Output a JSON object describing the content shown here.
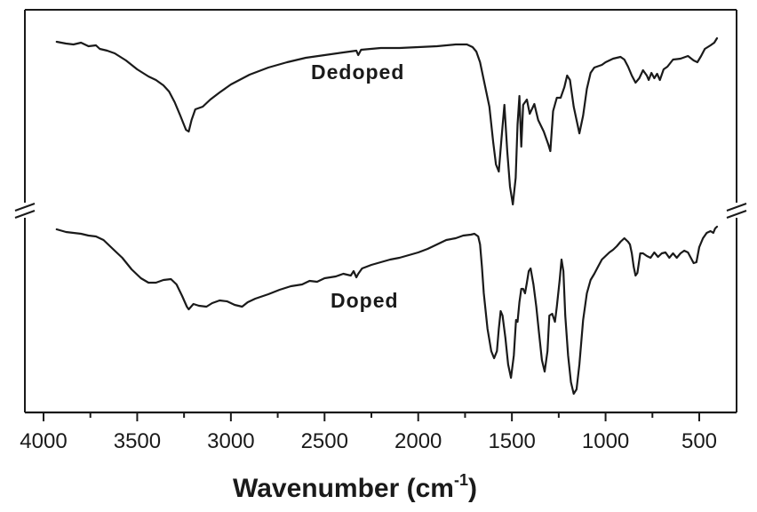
{
  "chart_data": {
    "type": "line",
    "title": "",
    "xlabel": "Wavenumber (cm",
    "xlabel_superscript": "-1",
    "xlabel_close": ")",
    "ylabel": "",
    "xlim": [
      4100,
      300
    ],
    "x_reversed": true,
    "x_ticks": [
      4000,
      3500,
      3000,
      2500,
      2000,
      1500,
      1000,
      500
    ],
    "x_tick_labels": [
      "4000",
      "3500",
      "3000",
      "2500",
      "2000",
      "1500",
      "1000",
      "500"
    ],
    "y_axis_break": true,
    "grid": false,
    "legend": "none",
    "annotations": [
      {
        "text": "Dedoped",
        "series": "Dedoped"
      },
      {
        "text": "Doped",
        "series": "Doped"
      }
    ],
    "y_units": "arbitrary (stacked transmittance, pixel offsets)",
    "series": [
      {
        "name": "Dedoped",
        "color": "#1a1a1a",
        "points": [
          [
            3930,
            47
          ],
          [
            3880,
            49
          ],
          [
            3840,
            50
          ],
          [
            3800,
            48
          ],
          [
            3760,
            52
          ],
          [
            3720,
            51
          ],
          [
            3700,
            55
          ],
          [
            3660,
            57
          ],
          [
            3620,
            60
          ],
          [
            3560,
            68
          ],
          [
            3500,
            78
          ],
          [
            3440,
            86
          ],
          [
            3400,
            90
          ],
          [
            3360,
            96
          ],
          [
            3330,
            103
          ],
          [
            3300,
            115
          ],
          [
            3270,
            130
          ],
          [
            3240,
            146
          ],
          [
            3225,
            148
          ],
          [
            3210,
            135
          ],
          [
            3190,
            123
          ],
          [
            3150,
            120
          ],
          [
            3110,
            112
          ],
          [
            3060,
            104
          ],
          [
            3000,
            95
          ],
          [
            2900,
            84
          ],
          [
            2800,
            76
          ],
          [
            2700,
            70
          ],
          [
            2600,
            65
          ],
          [
            2500,
            62
          ],
          [
            2400,
            59
          ],
          [
            2330,
            57
          ],
          [
            2320,
            62
          ],
          [
            2305,
            56
          ],
          [
            2200,
            54
          ],
          [
            2100,
            54
          ],
          [
            2000,
            53
          ],
          [
            1900,
            52
          ],
          [
            1800,
            50
          ],
          [
            1740,
            50
          ],
          [
            1710,
            53
          ],
          [
            1690,
            58
          ],
          [
            1670,
            70
          ],
          [
            1650,
            90
          ],
          [
            1620,
            120
          ],
          [
            1600,
            160
          ],
          [
            1585,
            185
          ],
          [
            1570,
            193
          ],
          [
            1555,
            155
          ],
          [
            1540,
            118
          ],
          [
            1525,
            170
          ],
          [
            1510,
            210
          ],
          [
            1495,
            230
          ],
          [
            1480,
            200
          ],
          [
            1470,
            140
          ],
          [
            1460,
            108
          ],
          [
            1450,
            165
          ],
          [
            1440,
            118
          ],
          [
            1420,
            112
          ],
          [
            1405,
            128
          ],
          [
            1380,
            117
          ],
          [
            1360,
            135
          ],
          [
            1330,
            148
          ],
          [
            1305,
            163
          ],
          [
            1295,
            170
          ],
          [
            1280,
            125
          ],
          [
            1260,
            110
          ],
          [
            1240,
            110
          ],
          [
            1220,
            98
          ],
          [
            1205,
            85
          ],
          [
            1190,
            90
          ],
          [
            1170,
            120
          ],
          [
            1155,
            135
          ],
          [
            1140,
            150
          ],
          [
            1120,
            130
          ],
          [
            1100,
            100
          ],
          [
            1080,
            82
          ],
          [
            1060,
            76
          ],
          [
            1020,
            73
          ],
          [
            1000,
            70
          ],
          [
            960,
            66
          ],
          [
            920,
            64
          ],
          [
            900,
            67
          ],
          [
            880,
            75
          ],
          [
            860,
            85
          ],
          [
            840,
            93
          ],
          [
            820,
            88
          ],
          [
            800,
            79
          ],
          [
            780,
            85
          ],
          [
            770,
            90
          ],
          [
            755,
            82
          ],
          [
            740,
            88
          ],
          [
            725,
            83
          ],
          [
            710,
            90
          ],
          [
            690,
            78
          ],
          [
            670,
            75
          ],
          [
            640,
            67
          ],
          [
            600,
            66
          ],
          [
            560,
            63
          ],
          [
            530,
            68
          ],
          [
            510,
            70
          ],
          [
            490,
            63
          ],
          [
            470,
            55
          ],
          [
            440,
            51
          ],
          [
            420,
            48
          ],
          [
            405,
            43
          ]
        ]
      },
      {
        "name": "Doped",
        "color": "#1a1a1a",
        "points": [
          [
            3930,
            258
          ],
          [
            3880,
            261
          ],
          [
            3840,
            262
          ],
          [
            3800,
            263
          ],
          [
            3760,
            265
          ],
          [
            3720,
            266
          ],
          [
            3680,
            270
          ],
          [
            3630,
            280
          ],
          [
            3580,
            290
          ],
          [
            3530,
            303
          ],
          [
            3480,
            313
          ],
          [
            3440,
            318
          ],
          [
            3400,
            318
          ],
          [
            3360,
            315
          ],
          [
            3320,
            314
          ],
          [
            3290,
            320
          ],
          [
            3260,
            333
          ],
          [
            3235,
            345
          ],
          [
            3225,
            348
          ],
          [
            3200,
            342
          ],
          [
            3170,
            344
          ],
          [
            3130,
            345
          ],
          [
            3100,
            341
          ],
          [
            3060,
            338
          ],
          [
            3020,
            339
          ],
          [
            2980,
            343
          ],
          [
            2940,
            345
          ],
          [
            2910,
            340
          ],
          [
            2870,
            336
          ],
          [
            2800,
            331
          ],
          [
            2740,
            326
          ],
          [
            2680,
            322
          ],
          [
            2620,
            320
          ],
          [
            2580,
            316
          ],
          [
            2540,
            317
          ],
          [
            2500,
            313
          ],
          [
            2440,
            311
          ],
          [
            2400,
            308
          ],
          [
            2360,
            310
          ],
          [
            2345,
            305
          ],
          [
            2330,
            312
          ],
          [
            2320,
            308
          ],
          [
            2300,
            302
          ],
          [
            2250,
            298
          ],
          [
            2200,
            295
          ],
          [
            2150,
            292
          ],
          [
            2100,
            290
          ],
          [
            2050,
            287
          ],
          [
            2000,
            284
          ],
          [
            1950,
            280
          ],
          [
            1900,
            275
          ],
          [
            1850,
            270
          ],
          [
            1800,
            268
          ],
          [
            1760,
            265
          ],
          [
            1720,
            264
          ],
          [
            1700,
            263
          ],
          [
            1680,
            266
          ],
          [
            1670,
            275
          ],
          [
            1660,
            300
          ],
          [
            1650,
            330
          ],
          [
            1630,
            370
          ],
          [
            1610,
            395
          ],
          [
            1595,
            403
          ],
          [
            1580,
            395
          ],
          [
            1570,
            370
          ],
          [
            1560,
            350
          ],
          [
            1550,
            355
          ],
          [
            1535,
            380
          ],
          [
            1520,
            410
          ],
          [
            1505,
            425
          ],
          [
            1490,
            400
          ],
          [
            1478,
            360
          ],
          [
            1470,
            362
          ],
          [
            1460,
            340
          ],
          [
            1450,
            325
          ],
          [
            1440,
            325
          ],
          [
            1430,
            330
          ],
          [
            1420,
            318
          ],
          [
            1410,
            305
          ],
          [
            1400,
            302
          ],
          [
            1385,
            320
          ],
          [
            1370,
            345
          ],
          [
            1355,
            375
          ],
          [
            1340,
            405
          ],
          [
            1325,
            418
          ],
          [
            1310,
            395
          ],
          [
            1300,
            355
          ],
          [
            1285,
            353
          ],
          [
            1270,
            362
          ],
          [
            1260,
            345
          ],
          [
            1245,
            315
          ],
          [
            1235,
            292
          ],
          [
            1225,
            305
          ],
          [
            1215,
            355
          ],
          [
            1200,
            400
          ],
          [
            1185,
            430
          ],
          [
            1170,
            443
          ],
          [
            1155,
            438
          ],
          [
            1140,
            410
          ],
          [
            1120,
            360
          ],
          [
            1100,
            330
          ],
          [
            1080,
            315
          ],
          [
            1060,
            308
          ],
          [
            1040,
            300
          ],
          [
            1020,
            292
          ],
          [
            1000,
            288
          ],
          [
            980,
            284
          ],
          [
            960,
            281
          ],
          [
            940,
            277
          ],
          [
            920,
            272
          ],
          [
            900,
            268
          ],
          [
            880,
            272
          ],
          [
            870,
            275
          ],
          [
            860,
            285
          ],
          [
            850,
            300
          ],
          [
            840,
            310
          ],
          [
            830,
            307
          ],
          [
            815,
            285
          ],
          [
            800,
            285
          ],
          [
            780,
            288
          ],
          [
            760,
            290
          ],
          [
            740,
            284
          ],
          [
            720,
            289
          ],
          [
            700,
            285
          ],
          [
            680,
            284
          ],
          [
            660,
            290
          ],
          [
            640,
            285
          ],
          [
            620,
            290
          ],
          [
            600,
            285
          ],
          [
            580,
            282
          ],
          [
            560,
            284
          ],
          [
            545,
            290
          ],
          [
            530,
            296
          ],
          [
            515,
            295
          ],
          [
            500,
            278
          ],
          [
            480,
            268
          ],
          [
            460,
            262
          ],
          [
            440,
            260
          ],
          [
            425,
            262
          ],
          [
            415,
            257
          ],
          [
            405,
            255
          ]
        ]
      }
    ]
  }
}
